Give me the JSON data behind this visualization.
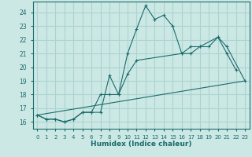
{
  "xlabel": "Humidex (Indice chaleur)",
  "bg_color": "#cce8e5",
  "grid_color": "#aad4d0",
  "line_color": "#1a6b6b",
  "xlim": [
    -0.5,
    23.5
  ],
  "ylim": [
    15.5,
    24.8
  ],
  "yticks": [
    16,
    17,
    18,
    19,
    20,
    21,
    22,
    23,
    24
  ],
  "xticks": [
    0,
    1,
    2,
    3,
    4,
    5,
    6,
    7,
    8,
    9,
    10,
    11,
    12,
    13,
    14,
    15,
    16,
    17,
    18,
    19,
    20,
    21,
    22,
    23
  ],
  "series": [
    {
      "x": [
        0,
        1,
        2,
        3,
        4,
        5,
        6,
        7,
        8,
        9,
        10,
        11,
        12,
        13,
        14,
        15,
        16,
        17,
        18,
        19,
        20,
        21,
        22
      ],
      "y": [
        16.5,
        16.2,
        16.2,
        16.0,
        16.2,
        16.7,
        16.7,
        16.7,
        19.4,
        18.0,
        21.0,
        22.8,
        24.5,
        23.5,
        23.8,
        23.0,
        21.0,
        21.0,
        21.5,
        21.5,
        22.2,
        21.0,
        19.8
      ]
    },
    {
      "x": [
        0,
        1,
        2,
        3,
        4,
        5,
        6,
        7,
        8,
        9,
        10,
        11,
        16,
        17,
        18,
        20,
        21,
        23
      ],
      "y": [
        16.5,
        16.2,
        16.2,
        16.0,
        16.2,
        16.7,
        16.7,
        18.0,
        18.0,
        18.0,
        19.5,
        20.5,
        21.0,
        21.5,
        21.5,
        22.2,
        21.5,
        19.0
      ]
    },
    {
      "x": [
        0,
        23
      ],
      "y": [
        16.5,
        19.0
      ]
    }
  ]
}
